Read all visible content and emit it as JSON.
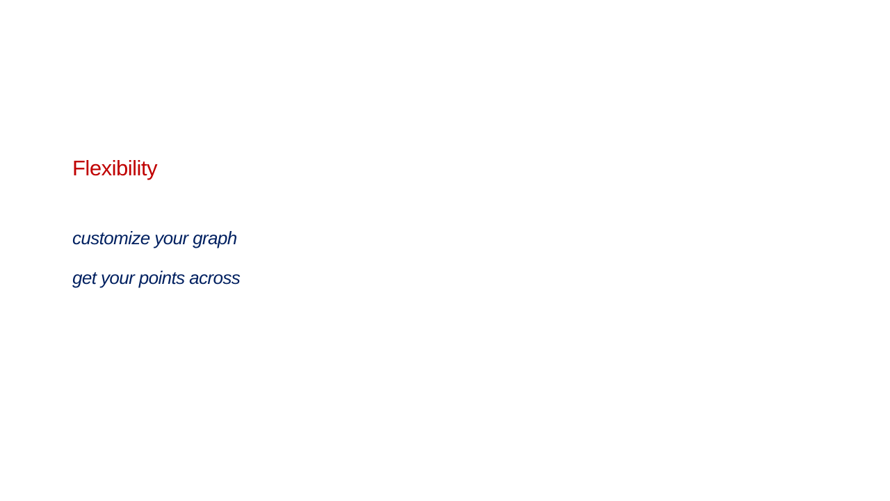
{
  "slide": {
    "title": "Flexibility",
    "points": [
      "customize your graph",
      "get your points across"
    ]
  },
  "colors": {
    "background": "#ffffff",
    "title": "#c00000",
    "body": "#002060"
  }
}
